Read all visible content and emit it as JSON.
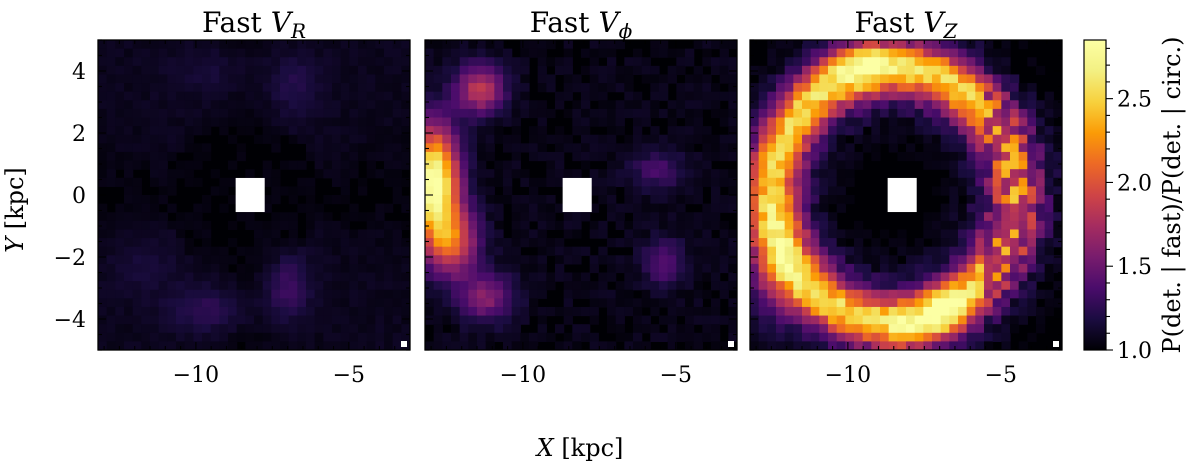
{
  "chart_data": {
    "type": "heatmap",
    "xlabel_var": "X",
    "xlabel_unit": " [kpc]",
    "ylabel_var": "Y",
    "ylabel_unit": " [kpc]",
    "xlim": [
      -13.2,
      -3.0
    ],
    "ylim": [
      -5.0,
      5.0
    ],
    "x_ticks": [
      -10,
      -5
    ],
    "x_tick_labels": [
      "−10",
      "−5"
    ],
    "y_ticks": [
      -4,
      -2,
      0,
      2,
      4
    ],
    "y_tick_labels": [
      "−4",
      "−2",
      "0",
      "2",
      "4"
    ],
    "colorbar": {
      "label": "P(det. | fast)/P(det. | circ.)",
      "range": [
        1.0,
        2.85
      ],
      "ticks": [
        1.0,
        1.5,
        2.0,
        2.5
      ],
      "tick_labels": [
        "1.0",
        "1.5",
        "2.0",
        "2.5"
      ],
      "colormap": "inferno"
    },
    "masked_region": {
      "x": [
        -8.7,
        -7.75
      ],
      "y": [
        -0.55,
        0.55
      ]
    },
    "panels": [
      {
        "title_prefix": "Fast ",
        "title_var": "V",
        "title_sub": "R",
        "peak_value": 1.45,
        "features": [
          {
            "shape": "blob",
            "x": -7.0,
            "y": -3.0,
            "value": 1.42
          },
          {
            "shape": "blob",
            "x": -9.6,
            "y": -3.8,
            "value": 1.35
          },
          {
            "shape": "blob",
            "x": -6.8,
            "y": 3.6,
            "value": 1.3
          },
          {
            "shape": "blob",
            "x": -9.5,
            "y": 4.0,
            "value": 1.2
          },
          {
            "shape": "blob",
            "x": -11.8,
            "y": -2.2,
            "value": 1.15
          }
        ]
      },
      {
        "title_prefix": "Fast ",
        "title_var": "V",
        "title_sub": "ϕ",
        "peak_value": 2.85,
        "features": [
          {
            "shape": "arc",
            "x": -12.8,
            "y": 0.5,
            "value": 2.85
          },
          {
            "shape": "blob",
            "x": -11.4,
            "y": 3.5,
            "value": 1.8
          },
          {
            "shape": "blob",
            "x": -11.2,
            "y": -3.3,
            "value": 1.6
          },
          {
            "shape": "blob",
            "x": -5.4,
            "y": -2.2,
            "value": 1.4
          },
          {
            "shape": "blob",
            "x": -5.6,
            "y": 0.8,
            "value": 1.3
          }
        ]
      },
      {
        "title_prefix": "Fast ",
        "title_var": "V",
        "title_sub": "Z",
        "peak_value": 2.85,
        "features": [
          {
            "shape": "ring",
            "x": -8.6,
            "y": 0.0,
            "value": 2.85
          },
          {
            "shape": "blob",
            "x": -9.6,
            "y": 4.3,
            "value": 2.8
          },
          {
            "shape": "blob",
            "x": -6.9,
            "y": -3.6,
            "value": 2.7
          },
          {
            "shape": "blob",
            "x": -7.9,
            "y": -4.4,
            "value": 2.6
          }
        ]
      }
    ]
  }
}
